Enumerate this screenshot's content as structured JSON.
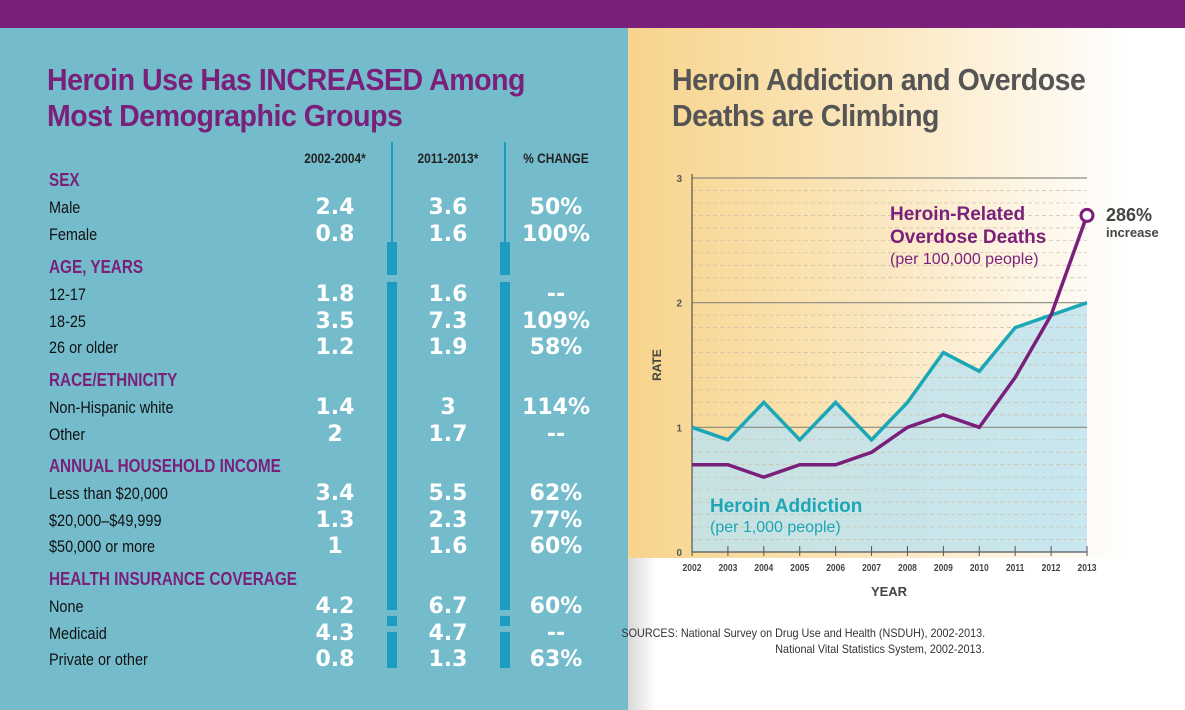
{
  "left": {
    "title_line1": "Heroin Use Has INCREASED Among",
    "title_line2": "Most Demographic Groups",
    "columns": [
      "2002-2004*",
      "2011-2013*",
      "% CHANGE"
    ],
    "sections": [
      {
        "name": "SEX",
        "rows": [
          [
            "Male",
            "2.4",
            "3.6",
            "50%"
          ],
          [
            "Female",
            "0.8",
            "1.6",
            "100%"
          ]
        ]
      },
      {
        "name": "AGE, YEARS",
        "rows": [
          [
            "12-17",
            "1.8",
            "1.6",
            "--"
          ],
          [
            "18-25",
            "3.5",
            "7.3",
            "109%"
          ],
          [
            "26 or older",
            "1.2",
            "1.9",
            "58%"
          ]
        ]
      },
      {
        "name": "RACE/ETHNICITY",
        "rows": [
          [
            "Non-Hispanic white",
            "1.4",
            "3",
            "114%"
          ],
          [
            "Other",
            "2",
            "1.7",
            "--"
          ]
        ]
      },
      {
        "name": "ANNUAL HOUSEHOLD INCOME",
        "rows": [
          [
            "Less than $20,000",
            "3.4",
            "5.5",
            "62%"
          ],
          [
            "$20,000–$49,999",
            "1.3",
            "2.3",
            "77%"
          ],
          [
            "$50,000 or more",
            "1",
            "1.6",
            "60%"
          ]
        ]
      },
      {
        "name": "HEALTH INSURANCE COVERAGE",
        "rows": [
          [
            "None",
            "4.2",
            "6.7",
            "60%"
          ],
          [
            "Medicaid",
            "4.3",
            "4.7",
            "--"
          ],
          [
            "Private or other",
            "0.8",
            "1.3",
            "63%"
          ]
        ]
      }
    ]
  },
  "chart_data": {
    "type": "line",
    "title": "Heroin Addiction and Overdose Deaths are Climbing",
    "xlabel": "YEAR",
    "ylabel": "RATE",
    "x": [
      2002,
      2003,
      2004,
      2005,
      2006,
      2007,
      2008,
      2009,
      2010,
      2011,
      2012,
      2013
    ],
    "ylim": [
      0,
      3
    ],
    "yticks": [
      0,
      1,
      2,
      3
    ],
    "grid": true,
    "series": [
      {
        "name": "Heroin Addiction",
        "unit": "(per 1,000 people)",
        "color": "#1ba7b5",
        "fill": true,
        "values": [
          1.0,
          0.9,
          1.2,
          0.9,
          1.2,
          0.9,
          1.2,
          1.6,
          1.45,
          1.8,
          1.9,
          2.0
        ]
      },
      {
        "name": "Heroin-Related Overdose Deaths",
        "unit": "(per 100,000 people)",
        "color": "#7a1f7a",
        "values": [
          0.7,
          0.7,
          0.6,
          0.7,
          0.7,
          0.8,
          1.0,
          1.1,
          1.0,
          1.4,
          1.9,
          2.7
        ]
      }
    ],
    "annotation": {
      "value": "286%",
      "text": "increase"
    }
  },
  "sources": [
    "SOURCES: National Survey on Drug Use and Health (NSDUH), 2002-2013.",
    "National Vital Statistics System, 2002-2013."
  ],
  "colors": {
    "purple": "#7a1f7a",
    "teal": "#1ba7b5",
    "panel": "#74bccb"
  }
}
